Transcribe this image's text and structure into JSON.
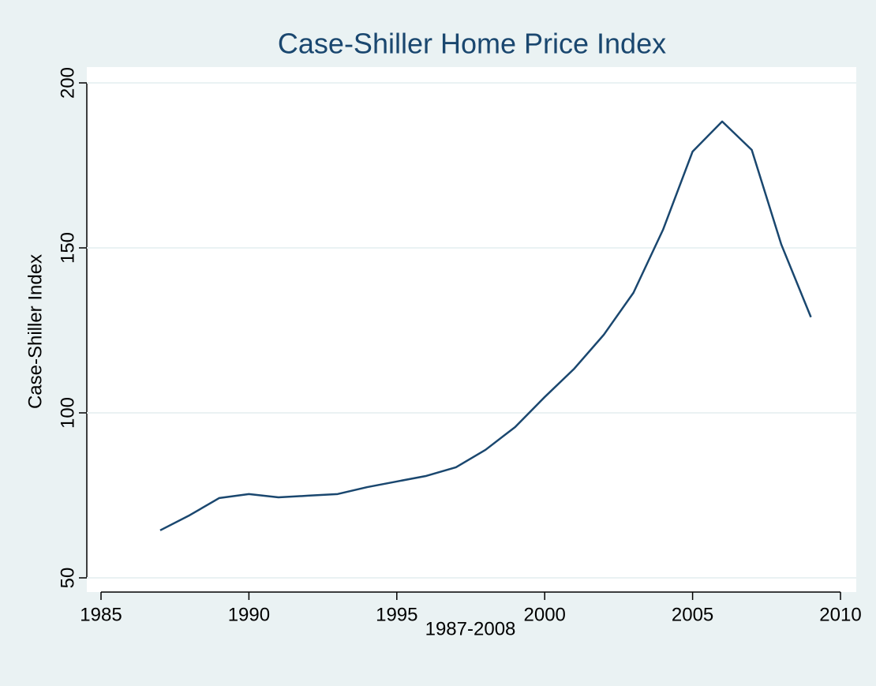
{
  "chart_data": {
    "type": "line",
    "title": "Case-Shiller Home Price Index",
    "x_label": "1987-2008",
    "y_label": "Case-Shiller Index",
    "x": [
      1987,
      1988,
      1989,
      1990,
      1991,
      1992,
      1993,
      1994,
      1995,
      1996,
      1997,
      1998,
      1999,
      2000,
      2001,
      2002,
      2003,
      2004,
      2005,
      2006,
      2007,
      2008,
      2009
    ],
    "series": [
      {
        "color": "#1a476f",
        "values": [
          64.4,
          69,
          74.2,
          75.4,
          74.4,
          74.9,
          75.4,
          77.5,
          79.2,
          80.9,
          83.5,
          88.8,
          95.7,
          104.8,
          113.4,
          123.7,
          136.4,
          155.5,
          179.2,
          188.3,
          179.7,
          151,
          129
        ]
      }
    ],
    "xlim": [
      1985,
      2010
    ],
    "xticks": [
      1985,
      1990,
      1995,
      2000,
      2005,
      2010
    ],
    "ylim": [
      50,
      200
    ],
    "yticks": [
      50,
      100,
      150,
      200
    ],
    "grid": true
  }
}
